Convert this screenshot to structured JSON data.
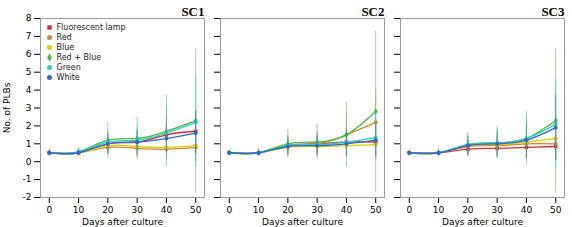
{
  "chart_data": [
    {
      "type": "line",
      "title": "SC1",
      "x": [
        0,
        10,
        20,
        30,
        40,
        50
      ],
      "xlabel": "Days after culture",
      "ylabel": "No. of PLBs",
      "xlim": [
        -3,
        53
      ],
      "xticks": [
        0,
        10,
        20,
        30,
        40,
        50
      ],
      "ylim": [
        -2,
        8
      ],
      "yticks": [
        -2,
        -1,
        0,
        1,
        2,
        3,
        4,
        5,
        6,
        7,
        8
      ],
      "legend": "upper left",
      "series": [
        {
          "name": "Fluorescent lamp",
          "color": "#cc3333",
          "marker": "square",
          "values": [
            0.5,
            0.5,
            1.0,
            1.1,
            1.5,
            1.7
          ],
          "errors": [
            0.15,
            0.2,
            0.6,
            0.7,
            1.0,
            1.2
          ]
        },
        {
          "name": "Red",
          "color": "#cc8833",
          "marker": "circle",
          "values": [
            0.5,
            0.5,
            0.8,
            0.75,
            0.7,
            0.8
          ],
          "errors": [
            0.1,
            0.15,
            0.4,
            0.5,
            0.6,
            0.8
          ]
        },
        {
          "name": "Blue",
          "color": "#ddcc00",
          "marker": "circle",
          "values": [
            0.5,
            0.5,
            0.9,
            0.85,
            0.8,
            0.9
          ],
          "errors": [
            0.1,
            0.15,
            0.4,
            0.5,
            0.6,
            0.8
          ]
        },
        {
          "name": "Red + Blue",
          "color": "#44bb44",
          "marker": "diamond",
          "values": [
            0.5,
            0.55,
            1.2,
            1.3,
            1.7,
            2.3
          ],
          "errors": [
            0.15,
            0.2,
            1.0,
            1.2,
            2.0,
            4.0
          ]
        },
        {
          "name": "Green",
          "color": "#33ccbb",
          "marker": "circle",
          "values": [
            0.5,
            0.55,
            1.1,
            1.2,
            1.6,
            2.2
          ],
          "errors": [
            0.1,
            0.2,
            0.7,
            0.9,
            1.5,
            2.5
          ]
        },
        {
          "name": "White",
          "color": "#3366cc",
          "marker": "circle",
          "values": [
            0.5,
            0.5,
            1.0,
            1.1,
            1.3,
            1.6
          ],
          "errors": [
            0.1,
            0.15,
            0.5,
            0.6,
            0.8,
            1.2
          ]
        }
      ]
    },
    {
      "type": "line",
      "title": "SC2",
      "x": [
        0,
        10,
        20,
        30,
        40,
        50
      ],
      "xlabel": "Days after culture",
      "xlim": [
        -3,
        53
      ],
      "xticks": [
        0,
        10,
        20,
        30,
        40,
        50
      ],
      "ylim": [
        -2,
        8
      ],
      "yticks": [
        -2,
        -1,
        0,
        1,
        2,
        3,
        4,
        5,
        6,
        7,
        8
      ],
      "tick_labels": "x",
      "series": [
        {
          "name": "Fluorescent lamp",
          "color": "#cc3333",
          "marker": "square",
          "values": [
            0.5,
            0.5,
            0.9,
            1.0,
            1.1,
            1.1
          ],
          "errors": [
            0.1,
            0.15,
            0.5,
            0.6,
            0.8,
            1.0
          ]
        },
        {
          "name": "Red",
          "color": "#cc8833",
          "marker": "circle",
          "values": [
            0.5,
            0.5,
            0.9,
            1.0,
            1.5,
            2.2
          ],
          "errors": [
            0.1,
            0.15,
            0.6,
            0.7,
            1.2,
            1.8
          ]
        },
        {
          "name": "Blue",
          "color": "#ddcc00",
          "marker": "circle",
          "values": [
            0.5,
            0.5,
            0.8,
            0.85,
            0.9,
            0.95
          ],
          "errors": [
            0.1,
            0.1,
            0.4,
            0.5,
            0.6,
            0.8
          ]
        },
        {
          "name": "Red + Blue",
          "color": "#44bb44",
          "marker": "diamond",
          "values": [
            0.5,
            0.5,
            1.0,
            1.1,
            1.5,
            2.8
          ],
          "errors": [
            0.1,
            0.2,
            0.8,
            1.0,
            1.8,
            4.5
          ]
        },
        {
          "name": "Green",
          "color": "#33ccbb",
          "marker": "circle",
          "values": [
            0.5,
            0.5,
            0.9,
            0.95,
            1.1,
            1.35
          ],
          "errors": [
            0.1,
            0.15,
            0.5,
            0.6,
            0.9,
            1.2
          ]
        },
        {
          "name": "White",
          "color": "#3366cc",
          "marker": "circle",
          "values": [
            0.5,
            0.5,
            0.85,
            0.9,
            1.0,
            1.2
          ],
          "errors": [
            0.1,
            0.15,
            0.4,
            0.5,
            0.7,
            0.9
          ]
        }
      ]
    },
    {
      "type": "line",
      "title": "SC3",
      "x": [
        0,
        10,
        20,
        30,
        40,
        50
      ],
      "xlabel": "Days after culture",
      "xlim": [
        -3,
        53
      ],
      "xticks": [
        0,
        10,
        20,
        30,
        40,
        50
      ],
      "ylim": [
        -2,
        8
      ],
      "yticks": [
        -2,
        -1,
        0,
        1,
        2,
        3,
        4,
        5,
        6,
        7,
        8
      ],
      "tick_labels": "x",
      "series": [
        {
          "name": "Fluorescent lamp",
          "color": "#cc3333",
          "marker": "square",
          "values": [
            0.5,
            0.5,
            0.7,
            0.75,
            0.8,
            0.85
          ],
          "errors": [
            0.1,
            0.1,
            0.4,
            0.5,
            0.6,
            0.8
          ]
        },
        {
          "name": "Red",
          "color": "#cc8833",
          "marker": "circle",
          "values": [
            0.5,
            0.5,
            0.85,
            0.9,
            1.0,
            1.0
          ],
          "errors": [
            0.1,
            0.1,
            0.4,
            0.5,
            0.6,
            0.9
          ]
        },
        {
          "name": "Blue",
          "color": "#ddcc00",
          "marker": "circle",
          "values": [
            0.5,
            0.5,
            0.9,
            0.95,
            1.1,
            1.3
          ],
          "errors": [
            0.1,
            0.15,
            0.5,
            0.6,
            0.8,
            1.2
          ]
        },
        {
          "name": "Red + Blue",
          "color": "#44bb44",
          "marker": "diamond",
          "values": [
            0.5,
            0.5,
            0.95,
            1.05,
            1.3,
            2.3
          ],
          "errors": [
            0.1,
            0.2,
            0.7,
            0.9,
            1.5,
            4.0
          ]
        },
        {
          "name": "Green",
          "color": "#33ccbb",
          "marker": "circle",
          "values": [
            0.5,
            0.5,
            0.95,
            1.05,
            1.3,
            2.1
          ],
          "errors": [
            0.1,
            0.15,
            0.6,
            0.8,
            1.2,
            2.5
          ]
        },
        {
          "name": "White",
          "color": "#3366cc",
          "marker": "circle",
          "values": [
            0.5,
            0.5,
            0.9,
            1.0,
            1.2,
            1.9
          ],
          "errors": [
            0.1,
            0.15,
            0.5,
            0.7,
            1.0,
            1.8
          ]
        }
      ]
    }
  ]
}
